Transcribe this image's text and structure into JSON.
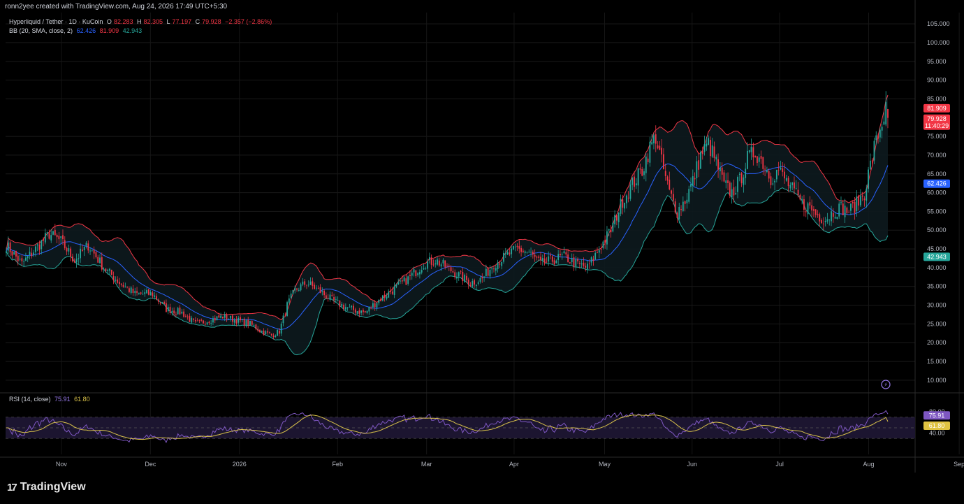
{
  "header": {
    "text": "ronn2yee created with TradingView.com, Aug 24, 2026 17:49 UTC+5:30"
  },
  "symbol": {
    "title": "Hyperliquid / Tether · 1D · KuCoin",
    "o_label": "O",
    "o_value": "82.283",
    "h_label": "H",
    "h_value": "82.305",
    "l_label": "L",
    "l_value": "77.197",
    "c_label": "C",
    "c_value": "79.928",
    "change": "−2.357 (−2.86%)"
  },
  "bb": {
    "title": "BB (20, SMA, close, 2)",
    "basis": "62.426",
    "upper": "81.909",
    "lower": "42.943"
  },
  "rsi": {
    "title": "RSI (14, close)",
    "value": "75.91",
    "ma": "61.80"
  },
  "price_badges": {
    "upper": "81.909",
    "close": "79.928",
    "countdown": "11:40:29",
    "basis": "62.426",
    "lower": "42.943"
  },
  "rsi_badges": {
    "rsi": "75.91",
    "ma": "61.80"
  },
  "colors": {
    "up": "#26a69a",
    "down": "#f23645",
    "upper_band": "#f23645",
    "lower_band": "#26a69a",
    "basis": "#2962ff",
    "rsi": "#7e57c2",
    "rsi_ma": "#d9c24a",
    "band_fill": "#0d1a1e"
  },
  "footer": {
    "brand": "TradingView",
    "logo_icon": "tradingview-logo-icon"
  },
  "chart_data": {
    "type": "candlestick",
    "price_axis": {
      "ticks": [
        "105.000",
        "100.000",
        "95.000",
        "90.000",
        "85.000",
        "75.000",
        "70.000",
        "65.000",
        "60.000",
        "55.000",
        "50.000",
        "45.000",
        "40.000",
        "35.000",
        "30.000",
        "25.000",
        "20.000",
        "15.000",
        "10.000"
      ],
      "range": [
        7,
        108
      ]
    },
    "rsi_axis": {
      "ticks": [
        "80.00",
        "40.00"
      ],
      "range": [
        0,
        100
      ],
      "bands": [
        30,
        50,
        70
      ]
    },
    "time_axis": {
      "labels": [
        "Nov",
        "Dec",
        "2026",
        "Feb",
        "Mar",
        "Apr",
        "May",
        "Jun",
        "Jul",
        "Aug",
        "Sep"
      ]
    },
    "close_anchors": [
      [
        0,
        46
      ],
      [
        8,
        41
      ],
      [
        15,
        45
      ],
      [
        22,
        49
      ],
      [
        28,
        47
      ],
      [
        35,
        42
      ],
      [
        42,
        46
      ],
      [
        50,
        40
      ],
      [
        58,
        36
      ],
      [
        66,
        33
      ],
      [
        75,
        33
      ],
      [
        82,
        29
      ],
      [
        90,
        28
      ],
      [
        97,
        25
      ],
      [
        104,
        26
      ],
      [
        111,
        27
      ],
      [
        118,
        26
      ],
      [
        125,
        25
      ],
      [
        131,
        23
      ],
      [
        136,
        22
      ],
      [
        140,
        23
      ],
      [
        144,
        30
      ],
      [
        148,
        34
      ],
      [
        154,
        36
      ],
      [
        160,
        34
      ],
      [
        168,
        31
      ],
      [
        176,
        29
      ],
      [
        184,
        28
      ],
      [
        190,
        31
      ],
      [
        198,
        34
      ],
      [
        206,
        37
      ],
      [
        214,
        41
      ],
      [
        220,
        42
      ],
      [
        226,
        40
      ],
      [
        232,
        38
      ],
      [
        238,
        36
      ],
      [
        244,
        37
      ],
      [
        250,
        41
      ],
      [
        256,
        43
      ],
      [
        262,
        45
      ],
      [
        268,
        44
      ],
      [
        274,
        41
      ],
      [
        280,
        42
      ],
      [
        286,
        43
      ],
      [
        292,
        41
      ],
      [
        298,
        40
      ],
      [
        304,
        45
      ],
      [
        310,
        50
      ],
      [
        316,
        58
      ],
      [
        322,
        63
      ],
      [
        326,
        66
      ],
      [
        330,
        72
      ],
      [
        333,
        75
      ],
      [
        336,
        68
      ],
      [
        340,
        60
      ],
      [
        344,
        55
      ],
      [
        348,
        58
      ],
      [
        352,
        63
      ],
      [
        356,
        70
      ],
      [
        360,
        73
      ],
      [
        364,
        68
      ],
      [
        368,
        62
      ],
      [
        372,
        60
      ],
      [
        376,
        63
      ],
      [
        380,
        69
      ],
      [
        384,
        71
      ],
      [
        388,
        68
      ],
      [
        392,
        64
      ],
      [
        396,
        66
      ],
      [
        400,
        63
      ],
      [
        404,
        60
      ],
      [
        408,
        57
      ],
      [
        412,
        56
      ],
      [
        416,
        54
      ],
      [
        420,
        53
      ],
      [
        424,
        55
      ],
      [
        428,
        56
      ],
      [
        432,
        55
      ],
      [
        436,
        57
      ],
      [
        440,
        60
      ],
      [
        442,
        65
      ],
      [
        445,
        72
      ],
      [
        448,
        77
      ],
      [
        451,
        82
      ],
      [
        452,
        80
      ]
    ],
    "notes": "Daily candles with Bollinger Bands (20, 2) and RSI (14) with its moving average."
  }
}
